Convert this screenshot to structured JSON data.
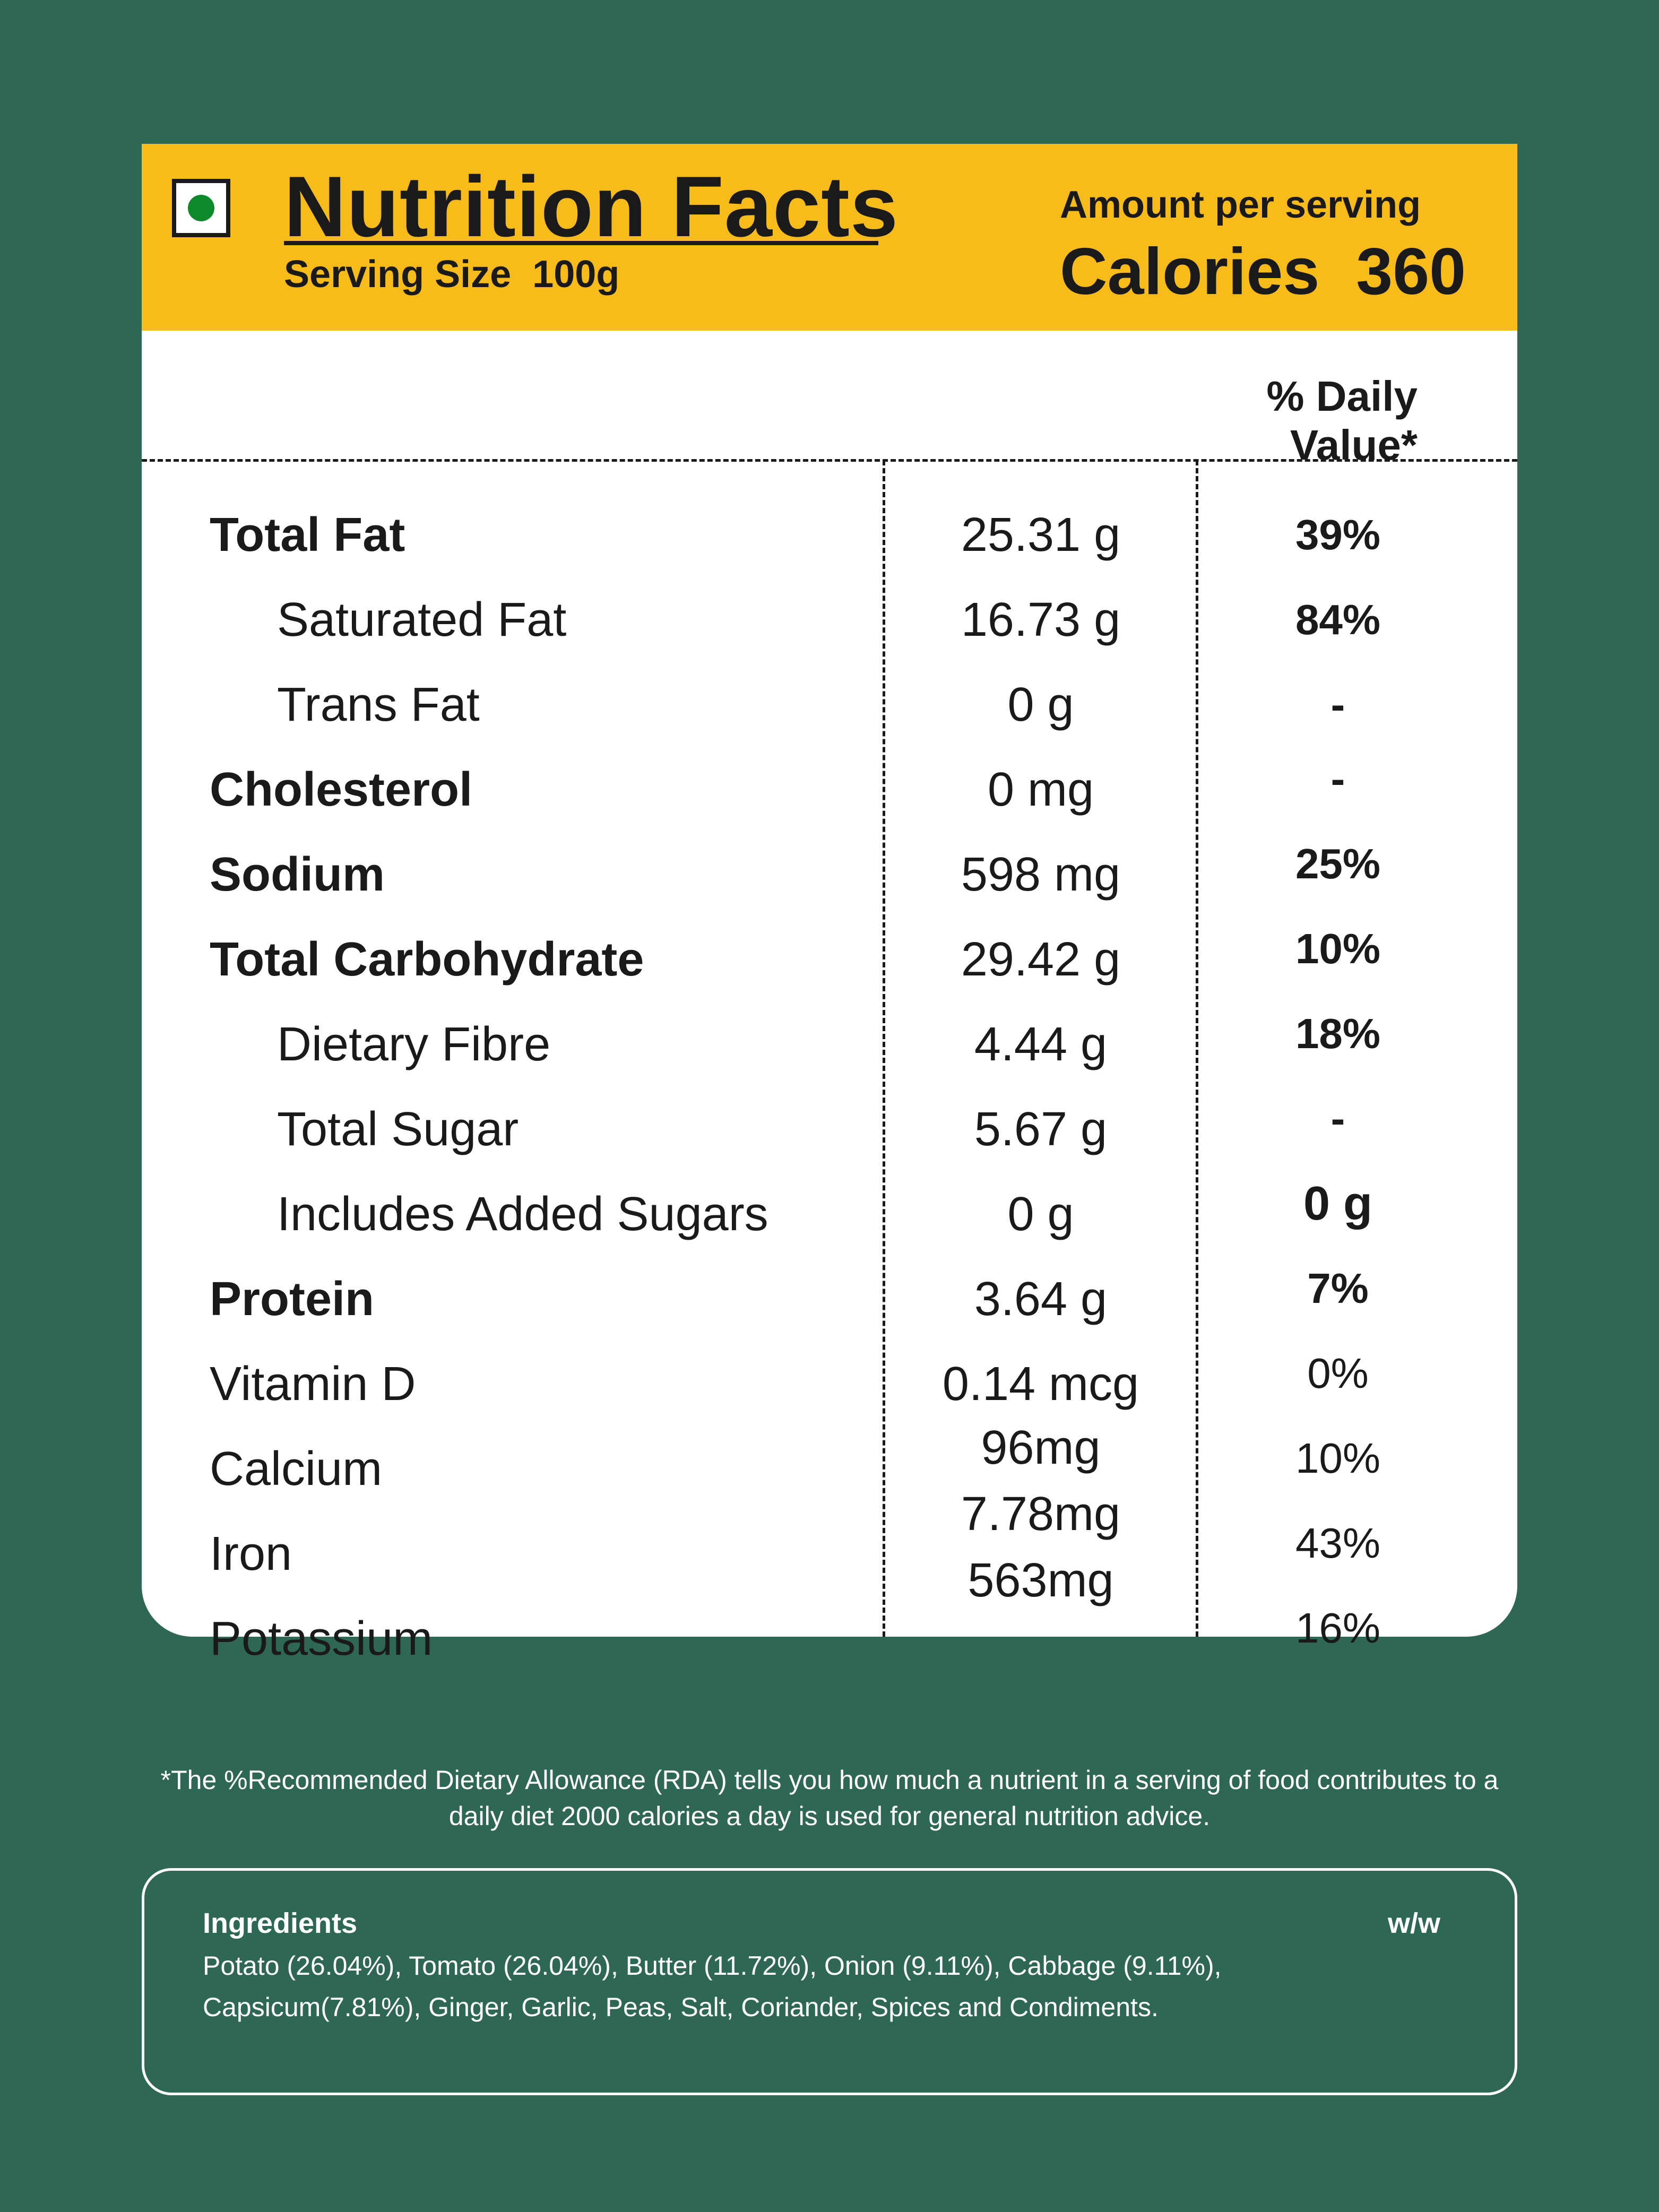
{
  "header": {
    "title": "Nutrition Facts",
    "serving_size": "Serving Size  100g",
    "amount_label": "Amount per serving",
    "calories": "Calories  360",
    "veg_mark_color": "#0f8a2a",
    "band_color": "#f7bc1a"
  },
  "daily_value_header": "% Daily Value*",
  "nutrients": [
    {
      "name": "Total Fat",
      "amount": "25.31 g",
      "dv": "39%"
    },
    {
      "name": "Saturated Fat",
      "amount": "16.73 g",
      "dv": "84%"
    },
    {
      "name": "Trans Fat",
      "amount": "0 g",
      "dv": "-"
    },
    {
      "name": "Cholesterol",
      "amount": "0 mg",
      "dv": "-"
    },
    {
      "name": "Sodium",
      "amount": "598 mg",
      "dv": "25%"
    },
    {
      "name": "Total Carbohydrate",
      "amount": "29.42 g",
      "dv": "10%"
    },
    {
      "name": "Dietary Fibre",
      "amount": "4.44 g",
      "dv": "18%"
    },
    {
      "name": "Total Sugar",
      "amount": "5.67 g",
      "dv": "-"
    },
    {
      "name": "Includes Added Sugars",
      "amount": "0 g",
      "dv": "0 g"
    },
    {
      "name": "Protein",
      "amount": "3.64 g",
      "dv": "7%"
    },
    {
      "name": "Vitamin D",
      "amount": "0.14 mcg",
      "dv": "0%"
    },
    {
      "name": "Calcium",
      "amount": "96mg",
      "dv": "10%"
    },
    {
      "name": "Iron",
      "amount": "7.78mg",
      "dv": "43%"
    },
    {
      "name": "Potassium",
      "amount": "563mg",
      "dv": "16%"
    }
  ],
  "footnote": "*The %Recommended Dietary Allowance (RDA) tells you how much a nutrient in a serving of food contributes to a daily diet 2000 calories a day is used for general nutrition advice.",
  "ingredients": {
    "title": "Ingredients",
    "basis": "w/w",
    "text": "Potato (26.04%), Tomato (26.04%), Butter (11.72%), Onion (9.11%), Cabbage (9.11%), Capsicum(7.81%), Ginger, Garlic, Peas, Salt, Coriander, Spices and Condiments."
  },
  "background_color": "#2e6754"
}
